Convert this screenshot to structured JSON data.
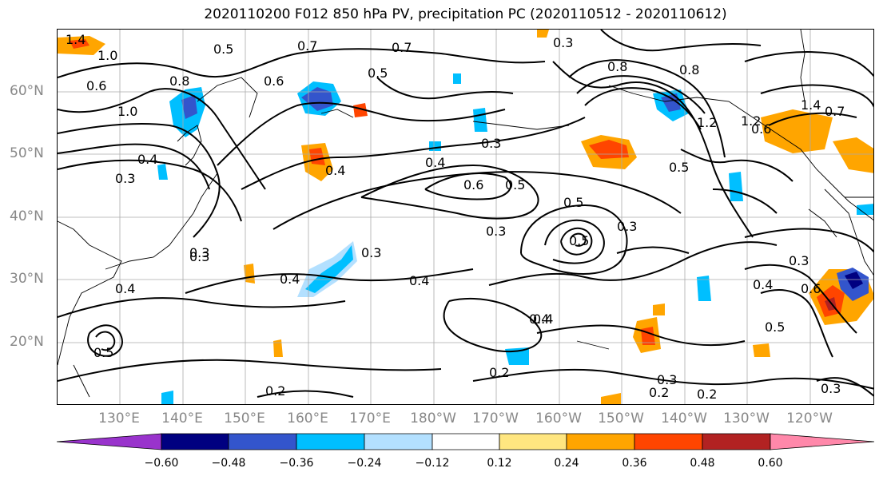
{
  "title": "2020110200 F012 850 hPa PV, precipitation PC (2020110512 - 2020110612)",
  "lat_labels": [
    "60°N",
    "50°N",
    "40°N",
    "30°N",
    "20°N"
  ],
  "lon_labels": [
    "130°E",
    "140°E",
    "150°E",
    "160°E",
    "170°E",
    "180°W",
    "170°W",
    "160°W",
    "150°W",
    "140°W",
    "130°W",
    "120°W"
  ],
  "colorbar": {
    "ticks": [
      "−0.60",
      "−0.48",
      "−0.36",
      "−0.24",
      "−0.12",
      "0.12",
      "0.24",
      "0.36",
      "0.48",
      "0.60"
    ],
    "colors": [
      "#9933cc",
      "#000080",
      "#3355cc",
      "#00bfff",
      "#b3e0ff",
      "#ffffff",
      "#ffe680",
      "#ffa500",
      "#ff4500",
      "#b22222",
      "#ff88aa"
    ]
  },
  "contour_labels": [
    "0.5",
    "0.7",
    "0.7",
    "0.5",
    "0.3",
    "0.3",
    "0.4",
    "0.6",
    "0.5",
    "0.6",
    "0.8",
    "0.8",
    "1.0",
    "1.4",
    "1.2",
    "1.0",
    "0.8",
    "0.6",
    "1.4",
    "1.2",
    "0.4",
    "0.3",
    "0.4",
    "0.4",
    "0.3",
    "0.4",
    "0.6",
    "0.5",
    "0.5",
    "0.3",
    "0.3",
    "0.3",
    "0.3",
    "0.4",
    "0.4",
    "0.4",
    "0.5",
    "0.2",
    "0.2",
    "0.3",
    "0.2",
    "0.2",
    "0.3",
    "0.5",
    "0.7",
    "0.6",
    "0.5",
    "0.4",
    "0.3"
  ]
}
